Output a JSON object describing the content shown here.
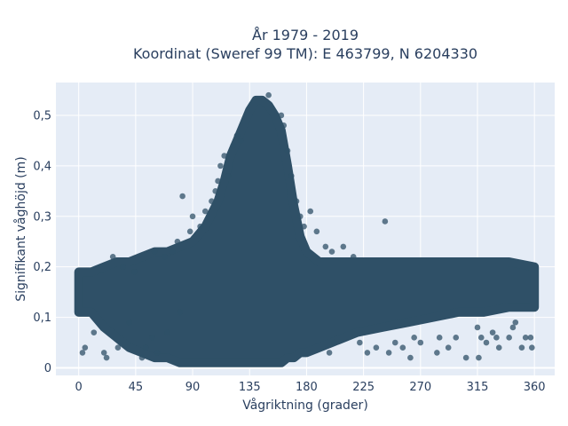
{
  "chart_data": {
    "type": "scatter",
    "title_line1": "År 1979 - 2019",
    "title_line2": "Koordinat (Sweref 99 TM): E 463799, N 6204330",
    "xlabel": "Vågriktning (grader)",
    "ylabel": "Signifikant våghöjd (m)",
    "xlim": [
      -18,
      376
    ],
    "ylim": [
      -0.015,
      0.565
    ],
    "x_ticks": [
      0,
      45,
      90,
      135,
      180,
      225,
      270,
      315,
      360
    ],
    "x_tick_labels": [
      "0",
      "45",
      "90",
      "135",
      "180",
      "225",
      "270",
      "315",
      "360"
    ],
    "y_ticks": [
      0,
      0.1,
      0.2,
      0.3,
      0.4,
      0.5
    ],
    "y_tick_labels": [
      "0",
      "0,1",
      "0,2",
      "0,3",
      "0,4",
      "0,5"
    ],
    "grid": true,
    "marker_color": "#2f5067",
    "background_color": "#e5ecf6",
    "envelope": {
      "x": [
        0,
        10,
        20,
        30,
        40,
        50,
        60,
        70,
        80,
        90,
        100,
        110,
        115,
        120,
        125,
        130,
        135,
        140,
        145,
        150,
        155,
        160,
        165,
        170,
        175,
        180,
        190,
        200,
        210,
        220,
        240,
        260,
        280,
        300,
        320,
        340,
        360
      ],
      "y_max": [
        0.19,
        0.19,
        0.2,
        0.21,
        0.21,
        0.22,
        0.23,
        0.23,
        0.24,
        0.25,
        0.28,
        0.33,
        0.37,
        0.42,
        0.45,
        0.48,
        0.51,
        0.53,
        0.53,
        0.52,
        0.5,
        0.47,
        0.4,
        0.32,
        0.26,
        0.23,
        0.21,
        0.21,
        0.21,
        0.21,
        0.21,
        0.21,
        0.21,
        0.21,
        0.21,
        0.21,
        0.2
      ],
      "y_min": [
        0.11,
        0.11,
        0.08,
        0.06,
        0.04,
        0.03,
        0.02,
        0.02,
        0.01,
        0.01,
        0.01,
        0.01,
        0.01,
        0.01,
        0.01,
        0.01,
        0.01,
        0.01,
        0.01,
        0.01,
        0.01,
        0.01,
        0.02,
        0.02,
        0.03,
        0.03,
        0.04,
        0.05,
        0.06,
        0.07,
        0.08,
        0.09,
        0.1,
        0.11,
        0.11,
        0.12,
        0.12
      ]
    },
    "points": [
      [
        3,
        0.03
      ],
      [
        5,
        0.04
      ],
      [
        12,
        0.07
      ],
      [
        20,
        0.03
      ],
      [
        22,
        0.02
      ],
      [
        27,
        0.22
      ],
      [
        31,
        0.04
      ],
      [
        40,
        0.09
      ],
      [
        50,
        0.02
      ],
      [
        53,
        0.04
      ],
      [
        58,
        0.06
      ],
      [
        62,
        0.03
      ],
      [
        70,
        0.07
      ],
      [
        78,
        0.25
      ],
      [
        80,
        0.11
      ],
      [
        82,
        0.34
      ],
      [
        88,
        0.27
      ],
      [
        90,
        0.3
      ],
      [
        96,
        0.28
      ],
      [
        100,
        0.31
      ],
      [
        105,
        0.33
      ],
      [
        108,
        0.35
      ],
      [
        110,
        0.37
      ],
      [
        112,
        0.4
      ],
      [
        115,
        0.42
      ],
      [
        118,
        0.38
      ],
      [
        122,
        0.44
      ],
      [
        125,
        0.46
      ],
      [
        128,
        0.45
      ],
      [
        150,
        0.54
      ],
      [
        160,
        0.5
      ],
      [
        162,
        0.48
      ],
      [
        165,
        0.43
      ],
      [
        168,
        0.38
      ],
      [
        172,
        0.33
      ],
      [
        175,
        0.3
      ],
      [
        178,
        0.28
      ],
      [
        183,
        0.31
      ],
      [
        188,
        0.27
      ],
      [
        195,
        0.24
      ],
      [
        200,
        0.23
      ],
      [
        209,
        0.24
      ],
      [
        217,
        0.22
      ],
      [
        242,
        0.29
      ],
      [
        235,
        0.04
      ],
      [
        245,
        0.03
      ],
      [
        250,
        0.05
      ],
      [
        256,
        0.04
      ],
      [
        262,
        0.02
      ],
      [
        270,
        0.05
      ],
      [
        283,
        0.03
      ],
      [
        285,
        0.06
      ],
      [
        292,
        0.04
      ],
      [
        298,
        0.06
      ],
      [
        306,
        0.02
      ],
      [
        315,
        0.08
      ],
      [
        316,
        0.02
      ],
      [
        318,
        0.06
      ],
      [
        322,
        0.05
      ],
      [
        330,
        0.06
      ],
      [
        332,
        0.04
      ],
      [
        340,
        0.06
      ],
      [
        343,
        0.08
      ],
      [
        350,
        0.04
      ],
      [
        353,
        0.06
      ],
      [
        357,
        0.06
      ],
      [
        358,
        0.04
      ],
      [
        345,
        0.09
      ],
      [
        327,
        0.07
      ],
      [
        265,
        0.06
      ],
      [
        228,
        0.03
      ],
      [
        222,
        0.05
      ],
      [
        198,
        0.03
      ],
      [
        202,
        0.05
      ],
      [
        68,
        0.22
      ],
      [
        74,
        0.23
      ],
      [
        60,
        0.23
      ],
      [
        44,
        0.19
      ],
      [
        35,
        0.2
      ]
    ]
  }
}
